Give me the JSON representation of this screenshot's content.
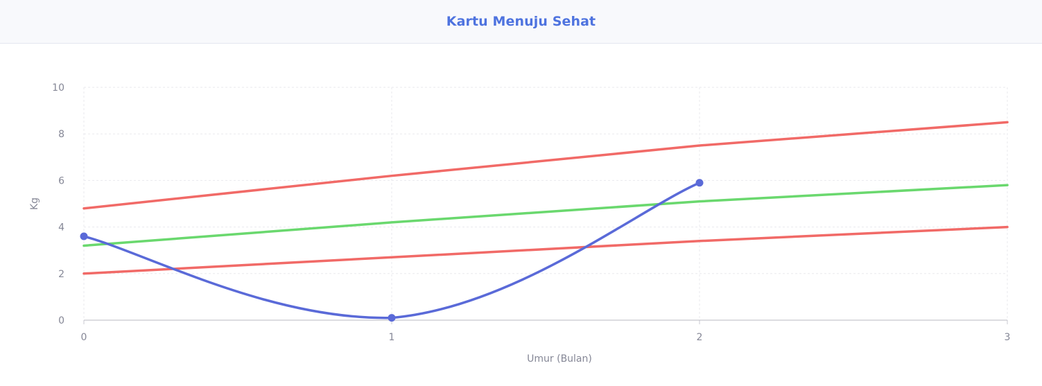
{
  "header": {
    "title": "Kartu Menuju Sehat"
  },
  "chart_data": {
    "type": "line",
    "xlabel": "Umur (Bulan)",
    "ylabel": "Kg",
    "xlim": [
      0,
      3
    ],
    "ylim": [
      0,
      10
    ],
    "x_ticks": [
      "0",
      "1",
      "2",
      "3"
    ],
    "y_ticks": [
      "0",
      "2",
      "4",
      "6",
      "8",
      "10"
    ],
    "grid": true,
    "legend": "none",
    "series": [
      {
        "color": "#f16a67",
        "x": [
          0,
          1,
          2,
          3
        ],
        "values": [
          4.8,
          6.2,
          7.5,
          8.5
        ],
        "markers": false,
        "curve": "straight"
      },
      {
        "color": "#6ad86e",
        "x": [
          0,
          1,
          2,
          3
        ],
        "values": [
          3.2,
          4.2,
          5.1,
          5.8
        ],
        "markers": false,
        "curve": "straight"
      },
      {
        "color": "#f16a67",
        "x": [
          0,
          1,
          2,
          3
        ],
        "values": [
          2.0,
          2.7,
          3.4,
          4.0
        ],
        "markers": false,
        "curve": "straight"
      },
      {
        "color": "#5a6ad8",
        "x": [
          0,
          1,
          2
        ],
        "values": [
          3.6,
          0.1,
          5.9
        ],
        "markers": true,
        "curve": "smooth"
      }
    ]
  }
}
